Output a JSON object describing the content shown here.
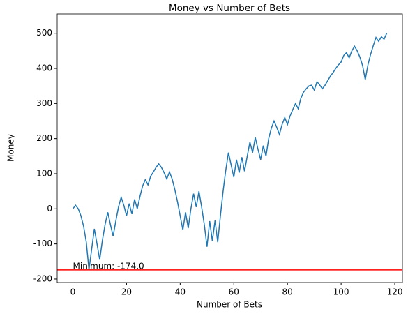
{
  "chart_data": {
    "type": "line",
    "title": "Money vs Number of Bets",
    "xlabel": "Number of Bets",
    "ylabel": "Money",
    "x": [
      0,
      1,
      2,
      3,
      4,
      5,
      6,
      7,
      8,
      9,
      10,
      11,
      12,
      13,
      14,
      15,
      16,
      17,
      18,
      19,
      20,
      21,
      22,
      23,
      24,
      25,
      26,
      27,
      28,
      29,
      30,
      31,
      32,
      33,
      34,
      35,
      36,
      37,
      38,
      39,
      40,
      41,
      42,
      43,
      44,
      45,
      46,
      47,
      48,
      49,
      50,
      51,
      52,
      53,
      54,
      55,
      56,
      57,
      58,
      59,
      60,
      61,
      62,
      63,
      64,
      65,
      66,
      67,
      68,
      69,
      70,
      71,
      72,
      73,
      74,
      75,
      76,
      77,
      78,
      79,
      80,
      81,
      82,
      83,
      84,
      85,
      86,
      87,
      88,
      89,
      90,
      91,
      92,
      93,
      94,
      95,
      96,
      97,
      98,
      99,
      100,
      101,
      102,
      103,
      104,
      105,
      106,
      107,
      108,
      109,
      110,
      111,
      112,
      113,
      114,
      115,
      116,
      117
    ],
    "series": [
      {
        "name": "Money",
        "color": "#1f77b4",
        "values": [
          0,
          10,
          0,
          -20,
          -50,
          -95,
          -174,
          -115,
          -57,
          -100,
          -145,
          -90,
          -45,
          -10,
          -45,
          -78,
          -35,
          5,
          33,
          10,
          -20,
          15,
          -15,
          27,
          0,
          35,
          65,
          83,
          68,
          93,
          105,
          118,
          128,
          118,
          103,
          85,
          105,
          85,
          55,
          20,
          -20,
          -60,
          -10,
          -55,
          0,
          43,
          5,
          50,
          5,
          -45,
          -108,
          -35,
          -92,
          -33,
          -95,
          -20,
          50,
          110,
          160,
          125,
          90,
          140,
          103,
          147,
          107,
          150,
          190,
          160,
          203,
          170,
          140,
          180,
          150,
          200,
          230,
          250,
          232,
          212,
          240,
          260,
          240,
          265,
          283,
          300,
          285,
          315,
          332,
          342,
          350,
          352,
          338,
          362,
          353,
          342,
          352,
          365,
          378,
          388,
          400,
          410,
          418,
          437,
          445,
          430,
          450,
          463,
          450,
          432,
          408,
          368,
          410,
          440,
          465,
          488,
          477,
          490,
          483,
          500
        ]
      }
    ],
    "hline": {
      "value": -174,
      "color": "#ff0000"
    },
    "annotation": {
      "text": "Minimum: -174.0",
      "x": 0,
      "y": -174
    },
    "xlim": [
      -5.85,
      122.85
    ],
    "xticks": [
      0,
      20,
      40,
      60,
      80,
      100,
      120
    ],
    "ylim": [
      -210,
      555
    ],
    "yticks": [
      -200,
      -100,
      0,
      100,
      200,
      300,
      400,
      500
    ]
  }
}
